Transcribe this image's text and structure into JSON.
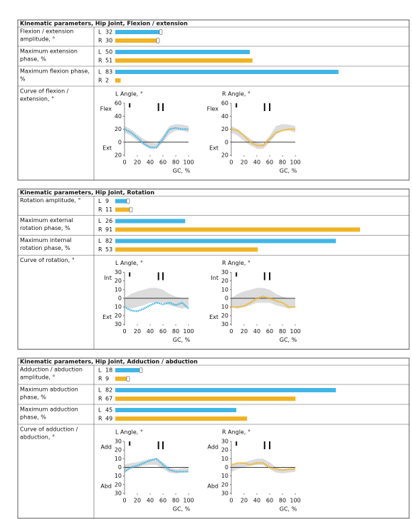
{
  "sections": [
    {
      "title": "Kinematic parameters, Hip Joint, Flexion / extension",
      "rows": [
        {
          "label": [
            "Flexion / extension",
            "amplitude, °"
          ],
          "L": {
            "letter": "L",
            "value": 32
          },
          "R": {
            "letter": "R",
            "value": 30
          }
        },
        {
          "label": [
            "Maximum extension",
            "phase, %"
          ],
          "L": {
            "letter": "L",
            "value": 50
          },
          "R": {
            "letter": "R",
            "value": 51
          }
        },
        {
          "label": [
            "Maximum flexion phase,",
            "%"
          ],
          "L": {
            "letter": "L",
            "value": 83
          },
          "R": {
            "letter": "R",
            "value": 2
          }
        }
      ],
      "curve": {
        "label": [
          "Curve of flexion /",
          "extension, °"
        ],
        "charts": [
          {
            "type": "line",
            "title": "L Angle, °",
            "ylabel_top": "Flex",
            "ylabel_bottom": "Ext",
            "xlabel": "GC, %",
            "xlim": [
              0,
              100
            ],
            "xticks": [
              0,
              20,
              40,
              60,
              80,
              100
            ],
            "ylim": [
              -20,
              60
            ],
            "yticks": [
              {
                "value": -20,
                "label": "20"
              },
              0,
              20,
              40,
              60
            ],
            "x": [
              0,
              10,
              20,
              30,
              40,
              50,
              60,
              70,
              80,
              90,
              100
            ],
            "values": [
              20,
              15,
              7,
              -2,
              -8,
              -8,
              5,
              20,
              22,
              20,
              20
            ],
            "color": "#41b6e6",
            "band_low": [
              15,
              10,
              2,
              -5,
              -10,
              -10,
              0,
              12,
              18,
              18,
              15
            ],
            "band_high": [
              25,
              20,
              12,
              5,
              0,
              -2,
              10,
              25,
              28,
              27,
              25
            ],
            "events": [
              8,
              53,
              60
            ]
          },
          {
            "type": "line",
            "title": "R Angle, °",
            "ylabel_top": "Flex",
            "ylabel_bottom": "Ext",
            "xlabel": "GC, %",
            "xlim": [
              0,
              100
            ],
            "xticks": [
              0,
              20,
              40,
              60,
              80,
              100
            ],
            "ylim": [
              -20,
              60
            ],
            "yticks": [
              {
                "value": -20,
                "label": "20"
              },
              0,
              20,
              40,
              60
            ],
            "x": [
              0,
              10,
              20,
              30,
              40,
              50,
              60,
              70,
              80,
              90,
              100
            ],
            "values": [
              20,
              18,
              10,
              0,
              -5,
              -5,
              5,
              15,
              18,
              20,
              20
            ],
            "color": "#f0b323",
            "band_low": [
              15,
              10,
              2,
              -5,
              -10,
              -10,
              0,
              12,
              18,
              18,
              15
            ],
            "band_high": [
              25,
              20,
              12,
              5,
              0,
              -2,
              10,
              25,
              28,
              27,
              25
            ],
            "events": [
              8,
              52,
              60
            ]
          }
        ]
      }
    },
    {
      "title": "Kinematic parameters, Hip Joint, Rotation",
      "rows": [
        {
          "label": [
            "Rotation amplitude, °"
          ],
          "L": {
            "letter": "L",
            "value": 9
          },
          "R": {
            "letter": "R",
            "value": 11
          }
        },
        {
          "label": [
            "Maximum external",
            "rotation phase, %"
          ],
          "L": {
            "letter": "L",
            "value": 26
          },
          "R": {
            "letter": "R",
            "value": 91
          }
        },
        {
          "label": [
            "Maximum internal",
            "rotation phase, %"
          ],
          "L": {
            "letter": "L",
            "value": 82
          },
          "R": {
            "letter": "R",
            "value": 53
          }
        }
      ],
      "curve": {
        "label": [
          "Curve of rotation, °"
        ],
        "charts": [
          {
            "type": "line",
            "title": "L Angle, °",
            "ylabel_top": "Int",
            "ylabel_bottom": "Ext",
            "xlabel": "GC, %",
            "xlim": [
              0,
              100
            ],
            "xticks": [
              0,
              20,
              40,
              60,
              80,
              100
            ],
            "ylim": [
              -30,
              30
            ],
            "yticks": [
              {
                "value": -30,
                "label": "30"
              },
              {
                "value": -20,
                "label": "20"
              },
              {
                "value": -10,
                "label": "10"
              },
              0,
              10,
              20,
              30
            ],
            "x": [
              0,
              10,
              20,
              30,
              40,
              50,
              60,
              70,
              80,
              90,
              100
            ],
            "values": [
              -10,
              -14,
              -15,
              -12,
              -8,
              -5,
              -7,
              -5,
              -8,
              -5,
              -12
            ],
            "color": "#41b6e6",
            "band_low": [
              -10,
              -12,
              -10,
              -8,
              -5,
              -5,
              -5,
              -8,
              -10,
              -12,
              -10
            ],
            "band_high": [
              0,
              5,
              8,
              10,
              12,
              12,
              10,
              5,
              2,
              0,
              0
            ],
            "events": [
              8,
              53,
              60
            ]
          },
          {
            "type": "line",
            "title": "R Angle, °",
            "ylabel_top": "Int",
            "ylabel_bottom": "Ext",
            "xlabel": "GC, %",
            "xlim": [
              0,
              100
            ],
            "xticks": [
              0,
              20,
              40,
              60,
              80,
              100
            ],
            "ylim": [
              -30,
              30
            ],
            "yticks": [
              {
                "value": -30,
                "label": "30"
              },
              {
                "value": -20,
                "label": "20"
              },
              {
                "value": -10,
                "label": "10"
              },
              0,
              10,
              20,
              30
            ],
            "x": [
              0,
              10,
              20,
              30,
              40,
              50,
              60,
              70,
              80,
              90,
              100
            ],
            "values": [
              -10,
              -10,
              -9,
              -5,
              0,
              2,
              0,
              -3,
              -5,
              -10,
              -10
            ],
            "color": "#f0b323",
            "band_low": [
              -10,
              -12,
              -10,
              -8,
              -5,
              -5,
              -5,
              -8,
              -10,
              -12,
              -10
            ],
            "band_high": [
              0,
              5,
              8,
              10,
              12,
              12,
              10,
              5,
              2,
              0,
              0
            ],
            "events": [
              8,
              52,
              60
            ]
          }
        ]
      }
    },
    {
      "title": "Kinematic parameters, Hip Joint, Adduction / abduction",
      "rows": [
        {
          "label": [
            "Adduction / abduction",
            "amplitude, °"
          ],
          "L": {
            "letter": "L",
            "value": 18
          },
          "R": {
            "letter": "R",
            "value": 9
          }
        },
        {
          "label": [
            "Maximum abduction",
            "phase, %"
          ],
          "L": {
            "letter": "L",
            "value": 82
          },
          "R": {
            "letter": "R",
            "value": 67
          }
        },
        {
          "label": [
            "Maximum adduction",
            "phase, %"
          ],
          "L": {
            "letter": "L",
            "value": 45
          },
          "R": {
            "letter": "R",
            "value": 49
          }
        }
      ],
      "curve": {
        "label": [
          "Curve of adduction /",
          "abduction, °"
        ],
        "charts": [
          {
            "type": "line",
            "title": "L Angle, °",
            "ylabel_top": "Add",
            "ylabel_bottom": "Abd",
            "xlabel": "GC, %",
            "xlim": [
              0,
              100
            ],
            "xticks": [
              0,
              20,
              40,
              60,
              80,
              100
            ],
            "ylim": [
              -30,
              30
            ],
            "yticks": [
              {
                "value": -30,
                "label": "30"
              },
              {
                "value": -20,
                "label": "20"
              },
              {
                "value": -10,
                "label": "10"
              },
              0,
              10,
              20,
              30
            ],
            "x": [
              0,
              10,
              20,
              30,
              40,
              50,
              60,
              70,
              80,
              90,
              100
            ],
            "values": [
              -5,
              0,
              2,
              5,
              8,
              10,
              3,
              -3,
              -5,
              -5,
              -5
            ],
            "color": "#41b6e6",
            "band_low": [
              -5,
              -2,
              0,
              2,
              3,
              3,
              -2,
              -6,
              -7,
              -6,
              -5
            ],
            "band_high": [
              3,
              5,
              6,
              8,
              10,
              10,
              6,
              0,
              -2,
              -1,
              0
            ],
            "events": [
              8,
              53,
              60
            ]
          },
          {
            "type": "line",
            "title": "R Angle, °",
            "ylabel_top": "Add",
            "ylabel_bottom": "Abd",
            "xlabel": "GC, %",
            "xlim": [
              0,
              100
            ],
            "xticks": [
              0,
              20,
              40,
              60,
              80,
              100
            ],
            "ylim": [
              -30,
              30
            ],
            "yticks": [
              {
                "value": -30,
                "label": "30"
              },
              {
                "value": -20,
                "label": "20"
              },
              {
                "value": -10,
                "label": "10"
              },
              0,
              10,
              20,
              30
            ],
            "x": [
              0,
              10,
              20,
              30,
              40,
              50,
              60,
              70,
              80,
              90,
              100
            ],
            "values": [
              3,
              5,
              5,
              3,
              5,
              5,
              0,
              -2,
              -3,
              -2,
              -2
            ],
            "color": "#f0b323",
            "band_low": [
              -5,
              -2,
              0,
              2,
              3,
              3,
              -2,
              -6,
              -7,
              -6,
              -5
            ],
            "band_high": [
              3,
              5,
              6,
              8,
              10,
              10,
              6,
              0,
              -2,
              -1,
              0
            ],
            "events": [
              8,
              52,
              60
            ]
          }
        ]
      }
    }
  ]
}
